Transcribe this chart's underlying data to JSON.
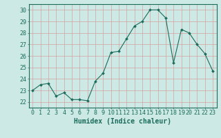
{
  "x": [
    0,
    1,
    2,
    3,
    4,
    5,
    6,
    7,
    8,
    9,
    10,
    11,
    12,
    13,
    14,
    15,
    16,
    17,
    18,
    19,
    20,
    21,
    22,
    23
  ],
  "y": [
    23.0,
    23.5,
    23.6,
    22.5,
    22.8,
    22.2,
    22.2,
    22.1,
    23.8,
    24.5,
    26.3,
    26.4,
    27.5,
    28.6,
    29.0,
    30.0,
    30.0,
    29.3,
    25.4,
    28.3,
    28.0,
    27.0,
    26.2,
    24.7
  ],
  "line_color": "#1a6b5a",
  "marker": "D",
  "marker_size": 2.0,
  "bg_color": "#cce9e5",
  "grid_color": "#d4a0a0",
  "title": "",
  "xlabel": "Humidex (Indice chaleur)",
  "ylabel": "",
  "xlim": [
    -0.5,
    23.5
  ],
  "ylim": [
    21.5,
    30.5
  ],
  "yticks": [
    22,
    23,
    24,
    25,
    26,
    27,
    28,
    29,
    30
  ],
  "xticks": [
    0,
    1,
    2,
    3,
    4,
    5,
    6,
    7,
    8,
    9,
    10,
    11,
    12,
    13,
    14,
    15,
    16,
    17,
    18,
    19,
    20,
    21,
    22,
    23
  ],
  "tick_color": "#1a6b5a",
  "axis_color": "#1a6b5a",
  "xlabel_fontsize": 7,
  "tick_fontsize": 6
}
